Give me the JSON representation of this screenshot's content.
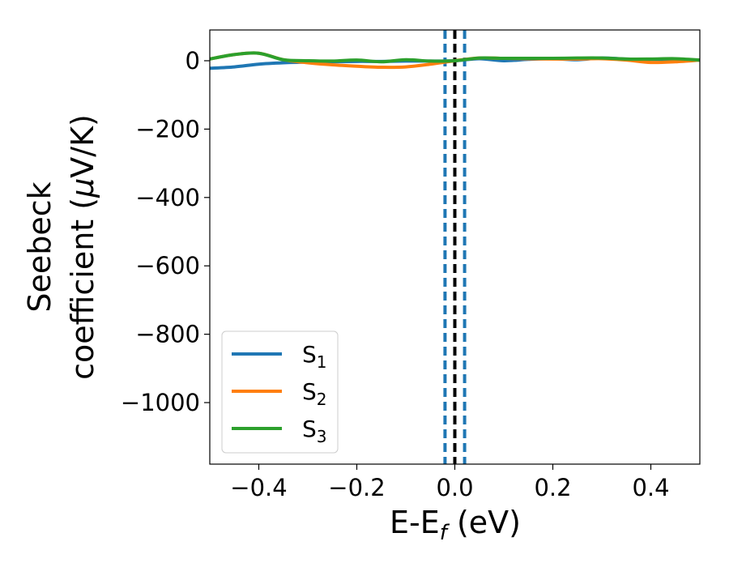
{
  "chart_data": {
    "type": "line",
    "xlabel": "E-E",
    "xlabel_sub": "f",
    "xlabel_unit": " (eV)",
    "ylabel_line1": "Seebeck",
    "ylabel_line2": "coefficient  (",
    "ylabel_mu": "μ",
    "ylabel_unit": "V/K)",
    "xlim": [
      -0.5,
      0.5
    ],
    "ylim": [
      -1180,
      90
    ],
    "xticks": [
      -0.4,
      -0.2,
      0.0,
      0.2,
      0.4
    ],
    "xtick_labels": [
      "−0.4",
      "−0.2",
      "0.0",
      "0.2",
      "0.4"
    ],
    "yticks": [
      0,
      -200,
      -400,
      -600,
      -800,
      -1000
    ],
    "ytick_labels": [
      "0",
      "−200",
      "−400",
      "−600",
      "−800",
      "−1000"
    ],
    "grid": false,
    "legend_position": "lower-left",
    "vlines": [
      {
        "x": -0.02,
        "style": "dashed",
        "color": "#1f77b4"
      },
      {
        "x": 0.0,
        "style": "dashed",
        "color": "#000000"
      },
      {
        "x": 0.02,
        "style": "dashed",
        "color": "#1f77b4"
      }
    ],
    "series": [
      {
        "name": "S",
        "sub": "1",
        "color": "#1f77b4",
        "x": [
          -0.5,
          -0.45,
          -0.4,
          -0.35,
          -0.3,
          -0.25,
          -0.2,
          -0.15,
          -0.1,
          -0.05,
          0.0,
          0.05,
          0.1,
          0.15,
          0.2,
          0.25,
          0.3,
          0.35,
          0.4,
          0.45,
          0.5
        ],
        "y": [
          -22,
          -18,
          -10,
          -6,
          -4,
          -3,
          -2,
          -2,
          -1,
          -1,
          0,
          6,
          0,
          4,
          6,
          3,
          8,
          5,
          4,
          3,
          2
        ]
      },
      {
        "name": "S",
        "sub": "2",
        "color": "#ff7f0e",
        "x": [
          -0.5,
          -0.45,
          -0.4,
          -0.35,
          -0.3,
          -0.25,
          -0.2,
          -0.15,
          -0.1,
          -0.05,
          0.0,
          0.05,
          0.1,
          0.15,
          0.2,
          0.25,
          0.3,
          0.35,
          0.4,
          0.45,
          0.5
        ],
        "y": [
          5,
          18,
          22,
          3,
          -6,
          -12,
          -16,
          -19,
          -18,
          -10,
          0,
          8,
          7,
          6,
          5,
          5,
          6,
          2,
          -5,
          -3,
          2
        ]
      },
      {
        "name": "S",
        "sub": "3",
        "color": "#2ca02c",
        "x": [
          -0.5,
          -0.45,
          -0.4,
          -0.35,
          -0.3,
          -0.25,
          -0.2,
          -0.15,
          -0.1,
          -0.05,
          0.0,
          0.05,
          0.1,
          0.15,
          0.2,
          0.25,
          0.3,
          0.35,
          0.4,
          0.45,
          0.5
        ],
        "y": [
          5,
          18,
          22,
          3,
          0,
          -1,
          2,
          -3,
          3,
          -1,
          0,
          8,
          7,
          7,
          7,
          8,
          8,
          5,
          5,
          6,
          2
        ]
      }
    ]
  }
}
